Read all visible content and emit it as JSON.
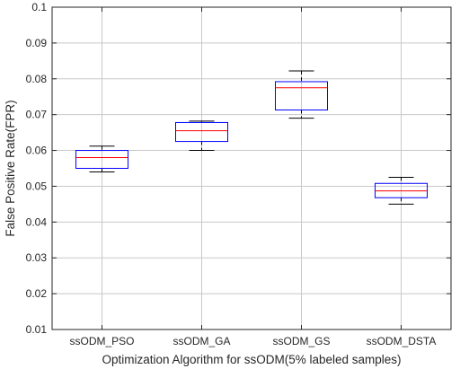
{
  "chart_data": {
    "type": "boxplot",
    "title": "",
    "xlabel": "Optimization Algorithm for ssODM(5% labeled samples)",
    "ylabel": "False Positive Rate(FPR)",
    "ylim": [
      0.01,
      0.1
    ],
    "yticks": [
      0.01,
      0.02,
      0.03,
      0.04,
      0.05,
      0.06,
      0.07,
      0.08,
      0.09,
      0.1
    ],
    "ytick_labels": [
      "0.01",
      "0.02",
      "0.03",
      "0.04",
      "0.05",
      "0.06",
      "0.07",
      "0.08",
      "0.09",
      "0.1"
    ],
    "categories": [
      "ssODM_PSO",
      "ssODM_GA",
      "ssODM_GS",
      "ssODM_DSTA"
    ],
    "boxes": [
      {
        "category": "ssODM_PSO",
        "min": 0.054,
        "q1": 0.055,
        "median": 0.058,
        "q3": 0.06,
        "max": 0.0612
      },
      {
        "category": "ssODM_GA",
        "min": 0.06,
        "q1": 0.0625,
        "median": 0.0655,
        "q3": 0.0678,
        "max": 0.0682
      },
      {
        "category": "ssODM_GS",
        "min": 0.069,
        "q1": 0.0713,
        "median": 0.0775,
        "q3": 0.0792,
        "max": 0.0822
      },
      {
        "category": "ssODM_DSTA",
        "min": 0.045,
        "q1": 0.0468,
        "median": 0.0487,
        "q3": 0.0508,
        "max": 0.0525
      }
    ],
    "grid": true,
    "colors": {
      "box": "#0000ff",
      "median": "#ff0000",
      "whisker": "#000000",
      "grid": "#c8c8c8",
      "axis": "#262626"
    }
  }
}
